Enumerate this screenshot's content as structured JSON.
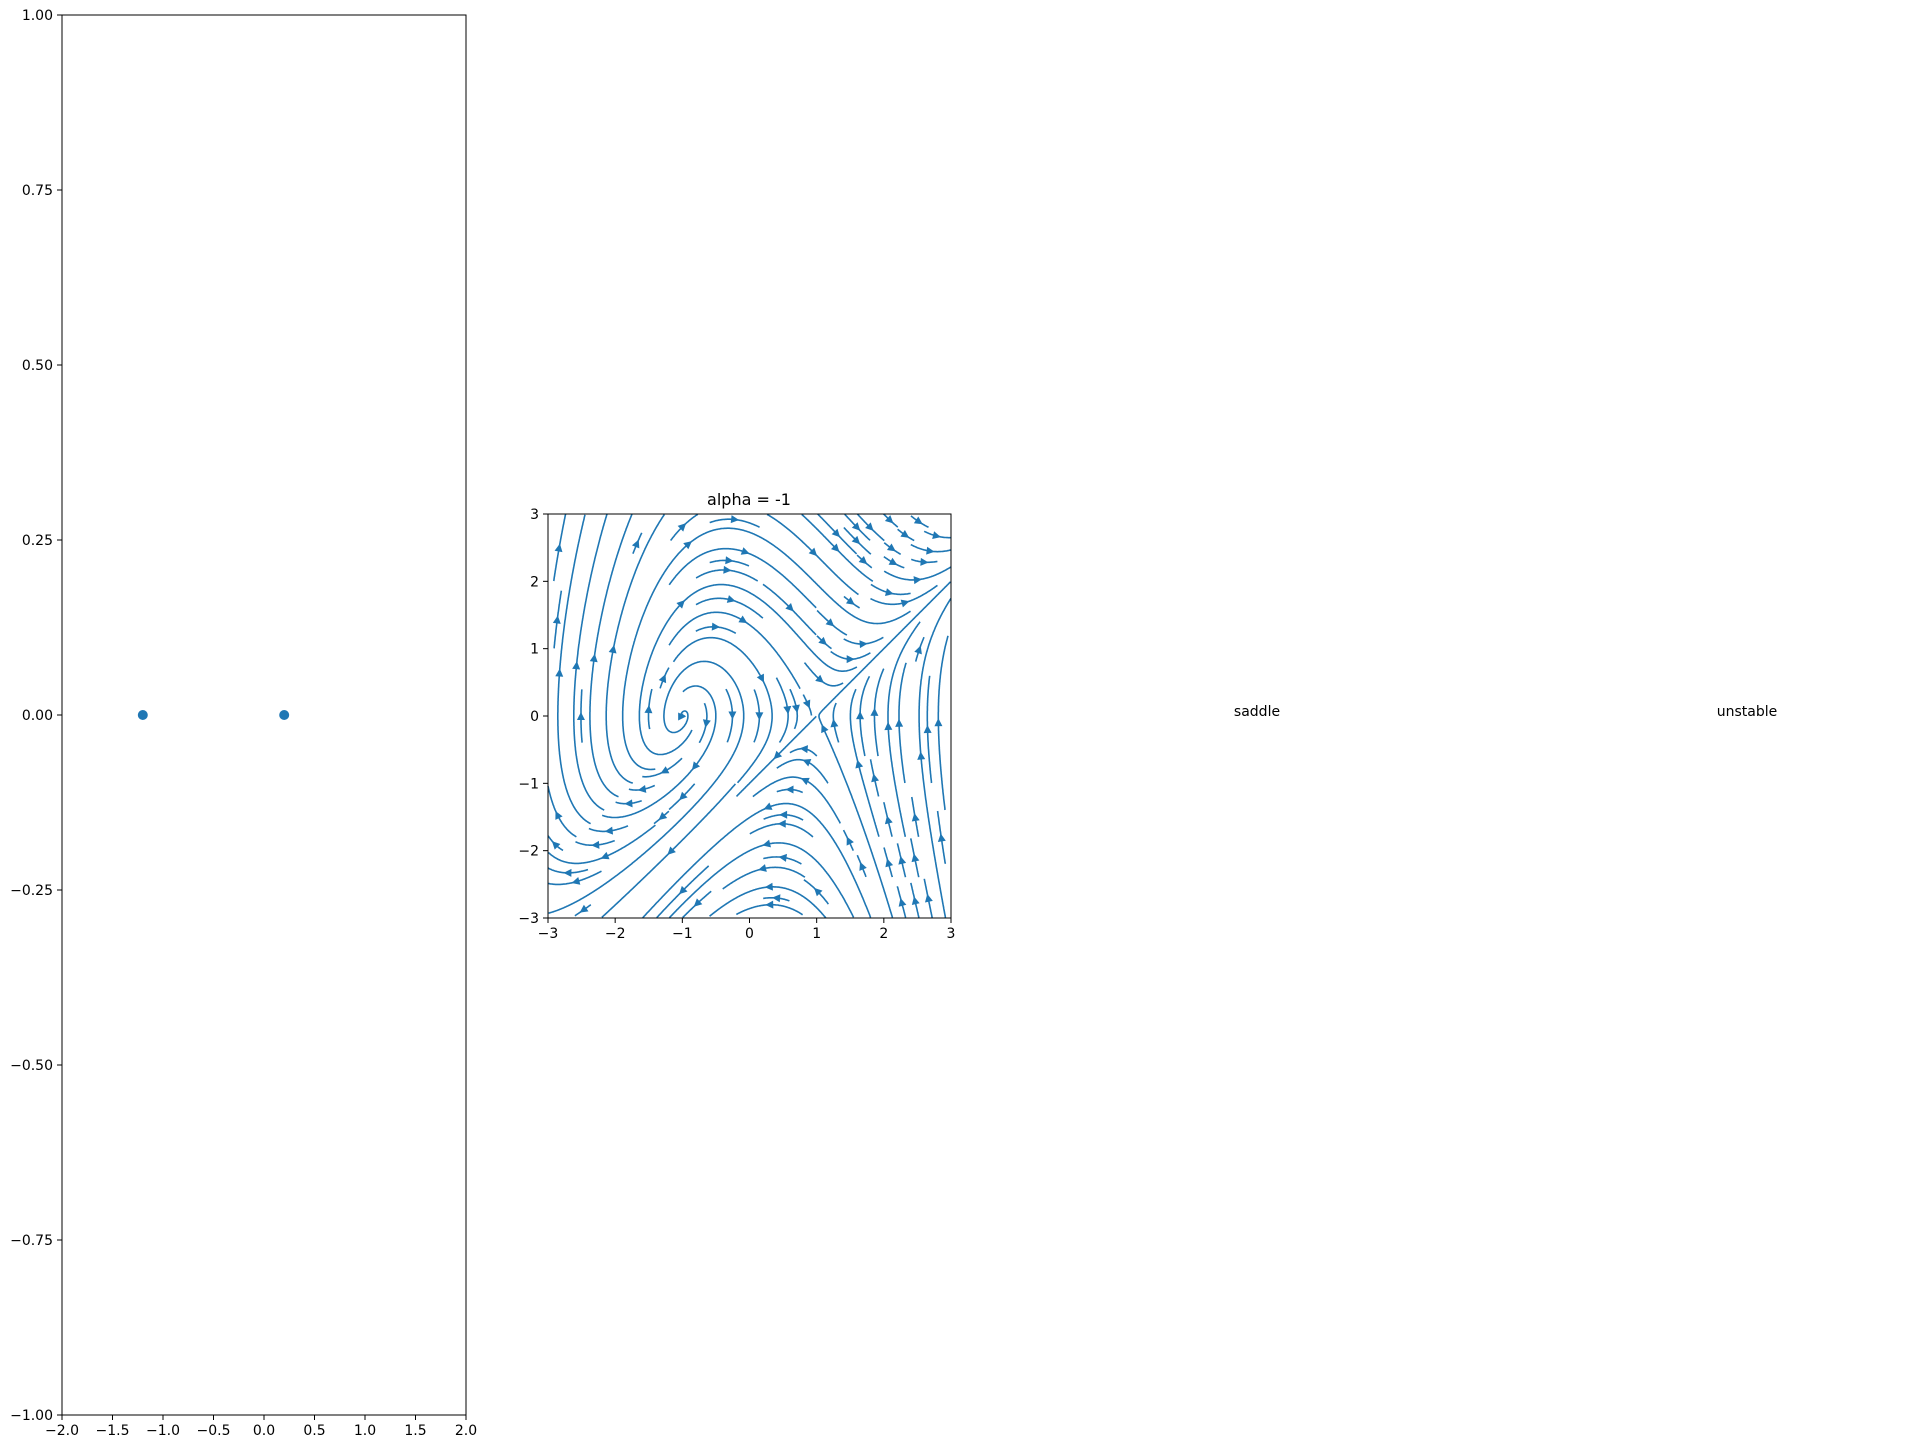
{
  "chart_data": [
    {
      "type": "scatter",
      "title": "",
      "xlabel": "",
      "ylabel": "",
      "xlim": [
        -2.0,
        2.0
      ],
      "ylim": [
        -1.0,
        1.0
      ],
      "x_ticks": [
        "−2.0",
        "−1.5",
        "−1.0",
        "−0.5",
        "0.0",
        "0.5",
        "1.0",
        "1.5",
        "2.0"
      ],
      "y_ticks": [
        "−1.00",
        "−0.75",
        "−0.50",
        "−0.25",
        "0.00",
        "0.25",
        "0.50",
        "0.75",
        "1.00"
      ],
      "points": [
        {
          "x": -1.2,
          "y": 0.0
        },
        {
          "x": 0.2,
          "y": 0.0
        }
      ],
      "color": "#1f77b4"
    },
    {
      "type": "streamplot",
      "title": "alpha = -1",
      "xlim": [
        -3,
        3
      ],
      "ylim": [
        -3,
        3
      ],
      "x_ticks": [
        "−3",
        "−2",
        "−1",
        "0",
        "1",
        "2",
        "3"
      ],
      "y_ticks": [
        "−3",
        "−2",
        "−1",
        "0",
        "1",
        "2",
        "3"
      ],
      "field": "dx/dt = y, dy/dt = alpha + x^2 - x*y",
      "alpha": -1,
      "color": "#1f77b4"
    }
  ],
  "labels": {
    "label_1": "saddle",
    "label_2": "unstable"
  }
}
